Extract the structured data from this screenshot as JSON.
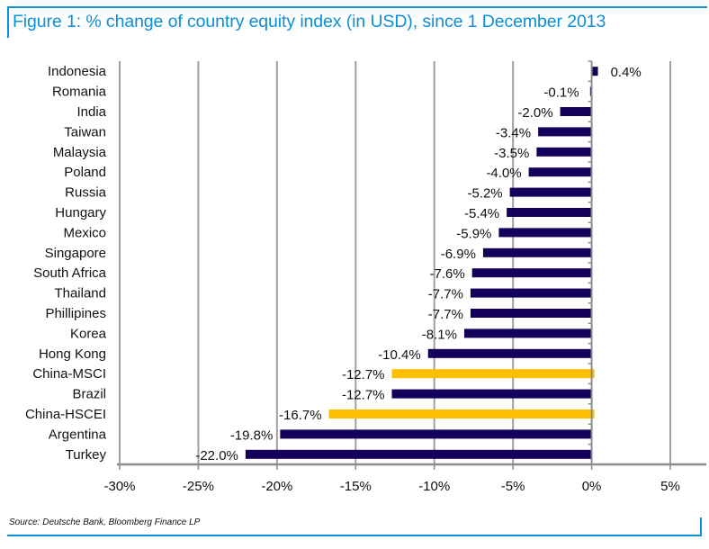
{
  "title": "Figure 1: % change of country equity index (in USD), since 1 December 2013",
  "source": "Source: Deutsche Bank, Bloomberg Finance LP",
  "colors": {
    "title": "#0b8fd6",
    "bar_default": "#14005a",
    "bar_highlight": "#fbbf00",
    "grid": "#a0a0a0",
    "axis": "#8c8c8c",
    "frame_accent": "#0b8fd6"
  },
  "chart_data": {
    "type": "bar",
    "orientation": "horizontal",
    "title": "Figure 1: % change of country equity index (in USD), since 1 December 2013",
    "xlabel": "",
    "ylabel": "",
    "xlim": [
      -30,
      5
    ],
    "xticks": [
      -30,
      -25,
      -20,
      -15,
      -10,
      -5,
      0,
      5
    ],
    "xtick_labels": [
      "-30%",
      "-25%",
      "-20%",
      "-15%",
      "-10%",
      "-5%",
      "0%",
      "5%"
    ],
    "grid": "vertical",
    "legend": "none",
    "categories": [
      "Indonesia",
      "Romania",
      "India",
      "Taiwan",
      "Malaysia",
      "Poland",
      "Russia",
      "Hungary",
      "Mexico",
      "Singapore",
      "South Africa",
      "Thailand",
      "Phillipines",
      "Korea",
      "Hong Kong",
      "China-MSCI",
      "Brazil",
      "China-HSCEI",
      "Argentina",
      "Turkey"
    ],
    "values": [
      0.4,
      -0.1,
      -2.0,
      -3.4,
      -3.5,
      -4.0,
      -5.2,
      -5.4,
      -5.9,
      -6.9,
      -7.6,
      -7.7,
      -7.7,
      -8.1,
      -10.4,
      -12.7,
      -12.7,
      -16.7,
      -19.8,
      -22.0
    ],
    "data_labels": [
      "0.4%",
      "-0.1%",
      "-2.0%",
      "-3.4%",
      "-3.5%",
      "-4.0%",
      "-5.2%",
      "-5.4%",
      "-5.9%",
      "-6.9%",
      "-7.6%",
      "-7.7%",
      "-7.7%",
      "-8.1%",
      "-10.4%",
      "-12.7%",
      "-12.7%",
      "-16.7%",
      "-19.8%",
      "-22.0%"
    ],
    "highlighted": [
      "China-MSCI",
      "China-HSCEI"
    ]
  }
}
